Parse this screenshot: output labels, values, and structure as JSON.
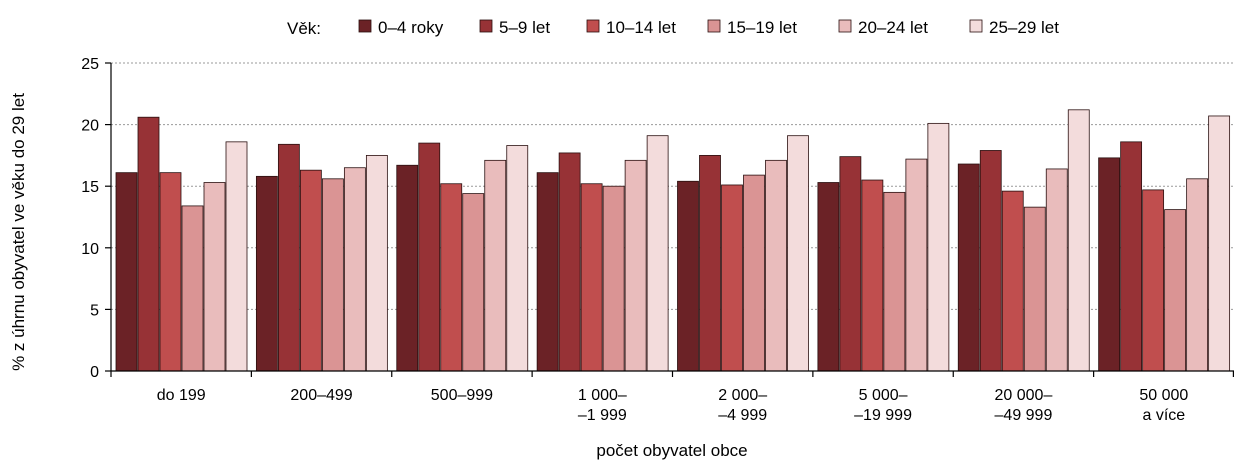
{
  "chart_data": {
    "type": "bar",
    "title": "",
    "legend_title": "Věk:",
    "legend_position": "top",
    "xlabel": "počet obyvatel obce",
    "ylabel": "% z úhrnu obyvatel ve věku do 29 let",
    "ylim": [
      0,
      25
    ],
    "yticks": [
      0,
      5,
      10,
      15,
      20,
      25
    ],
    "grid": "horizontal-dotted",
    "categories": [
      [
        "do 199"
      ],
      [
        "200–499"
      ],
      [
        "500–999"
      ],
      [
        "1 000–",
        "–1 999"
      ],
      [
        "2 000–",
        "–4 999"
      ],
      [
        "5 000–",
        "–19 999"
      ],
      [
        "20 000–",
        "–49 999"
      ],
      [
        "50 000",
        "a více"
      ]
    ],
    "series": [
      {
        "name": "0–4 roky",
        "color": "#6b2226",
        "values": [
          16.1,
          15.8,
          16.7,
          16.1,
          15.4,
          15.3,
          16.8,
          17.3
        ]
      },
      {
        "name": "5–9 let",
        "color": "#973236",
        "values": [
          20.6,
          18.4,
          18.5,
          17.7,
          17.5,
          17.4,
          17.9,
          18.6
        ]
      },
      {
        "name": "10–14 let",
        "color": "#c04e4e",
        "values": [
          16.1,
          16.3,
          15.2,
          15.2,
          15.1,
          15.5,
          14.6,
          14.7
        ]
      },
      {
        "name": "15–19 let",
        "color": "#da9494",
        "values": [
          13.4,
          15.6,
          14.4,
          15.0,
          15.9,
          14.5,
          13.3,
          13.1
        ]
      },
      {
        "name": "20–24 let",
        "color": "#e9bcbc",
        "values": [
          15.3,
          16.5,
          17.1,
          17.1,
          17.1,
          17.2,
          16.4,
          15.6
        ]
      },
      {
        "name": "25–29 let",
        "color": "#f3dcdc",
        "values": [
          18.6,
          17.5,
          18.3,
          19.1,
          19.1,
          20.1,
          21.2,
          20.7
        ]
      }
    ]
  }
}
